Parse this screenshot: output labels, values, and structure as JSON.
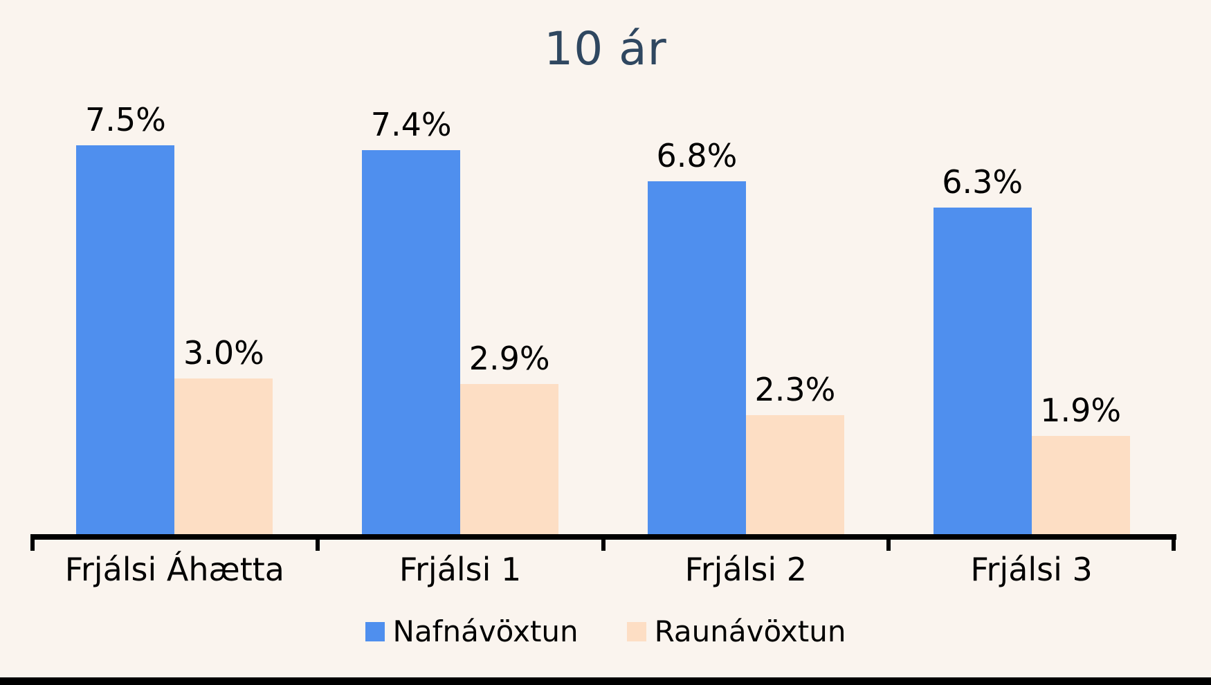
{
  "chart_data": {
    "type": "bar",
    "title": "10 ár",
    "categories": [
      "Frjálsi Áhætta",
      "Frjálsi 1",
      "Frjálsi 2",
      "Frjálsi 3"
    ],
    "series": [
      {
        "name": "Nafnávöxtun",
        "color": "#4F8FEE",
        "values": [
          7.5,
          7.4,
          6.8,
          6.3
        ],
        "labels": [
          "7.5%",
          "7.4%",
          "6.8%",
          "6.3%"
        ]
      },
      {
        "name": "Raunávöxtun",
        "color": "#FDDEC4",
        "values": [
          3.0,
          2.9,
          2.3,
          1.9
        ],
        "labels": [
          "3.0%",
          "2.9%",
          "2.3%",
          "1.9%"
        ]
      }
    ],
    "ylim": [
      0,
      8
    ],
    "xlabel": "",
    "ylabel": "",
    "grid": false,
    "legend_position": "bottom",
    "value_suffix": "%"
  },
  "colors": {
    "background": "#FAF4EE",
    "title_text": "#2F4760",
    "label_text": "#000000",
    "axis": "#000000",
    "bottom_strip": "#000000"
  }
}
